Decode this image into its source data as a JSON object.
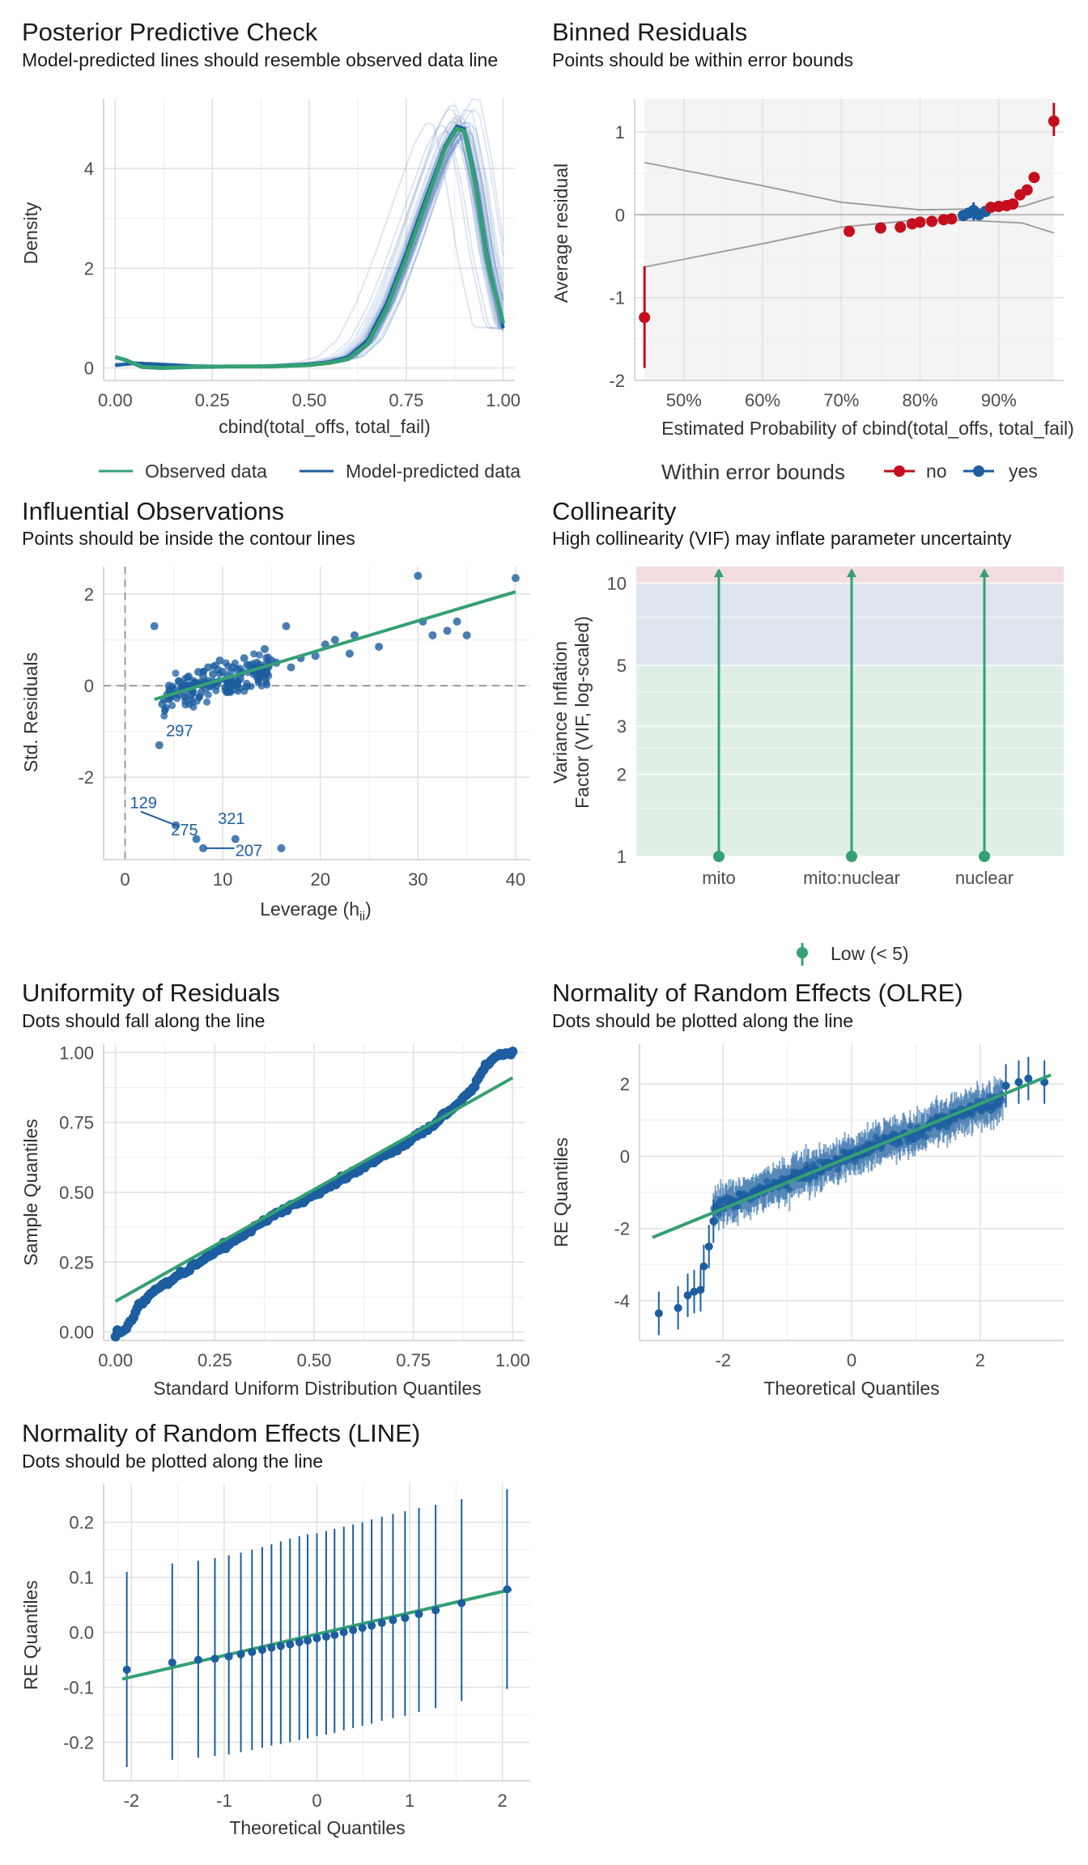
{
  "colors": {
    "green": "#34a074",
    "blue": "#1c5ea0",
    "red": "#c50f1e",
    "grey": "#a0a0a0",
    "panel": "#f4f4f4"
  },
  "chart_data": [
    {
      "id": "ppc",
      "type": "line",
      "title": "Posterior Predictive Check",
      "subtitle": "Model-predicted lines should resemble observed data line",
      "xlabel": "cbind(total_offs, total_fail)",
      "ylabel": "Density",
      "xlim": [
        -0.03,
        1.03
      ],
      "ylim": [
        -0.25,
        5.4
      ],
      "xticks": [
        0,
        0.25,
        0.5,
        0.75,
        1
      ],
      "xtick_labels": [
        "0.00",
        "0.25",
        "0.50",
        "0.75",
        "1.00"
      ],
      "yticks": [
        0,
        2,
        4
      ],
      "ytick_labels": [
        "0",
        "2",
        "4"
      ],
      "legend": [
        "Observed data",
        "Model-predicted data"
      ],
      "series": [
        {
          "name": "Model-predicted data",
          "x": [
            0,
            0.05,
            0.1,
            0.2,
            0.3,
            0.4,
            0.5,
            0.55,
            0.6,
            0.65,
            0.7,
            0.75,
            0.8,
            0.85,
            0.88,
            0.9,
            0.93,
            0.96,
            1.0
          ],
          "y": [
            0.05,
            0.1,
            0.08,
            0.04,
            0.03,
            0.04,
            0.08,
            0.12,
            0.22,
            0.55,
            1.3,
            2.3,
            3.4,
            4.45,
            4.85,
            4.8,
            3.7,
            2.2,
            0.8
          ]
        },
        {
          "name": "Observed data",
          "x": [
            0,
            0.03,
            0.07,
            0.12,
            0.2,
            0.3,
            0.4,
            0.5,
            0.55,
            0.6,
            0.65,
            0.7,
            0.75,
            0.8,
            0.85,
            0.88,
            0.9,
            0.93,
            0.96,
            1.0
          ],
          "y": [
            0.22,
            0.15,
            0.02,
            0.0,
            0.02,
            0.03,
            0.03,
            0.06,
            0.1,
            0.18,
            0.48,
            1.2,
            2.2,
            3.3,
            4.4,
            4.8,
            4.75,
            3.6,
            2.1,
            0.9
          ]
        }
      ]
    },
    {
      "id": "binned",
      "type": "scatter",
      "title": "Binned Residuals",
      "subtitle": "Points should be within error bounds",
      "xlabel": "Estimated Probability of cbind(total_offs, total_fail)",
      "ylabel": "Average residual",
      "xlim": [
        0.4375,
        0.9825
      ],
      "ylim": [
        -2.0,
        1.4
      ],
      "xticks": [
        0.5,
        0.6,
        0.7,
        0.8,
        0.9
      ],
      "xtick_labels": [
        "50%",
        "60%",
        "70%",
        "80%",
        "90%"
      ],
      "yticks": [
        -2,
        -1,
        0,
        1
      ],
      "ytick_labels": [
        "-2",
        "-1",
        "0",
        "1"
      ],
      "legend_title": "Within error bounds",
      "legend": [
        "no",
        "yes"
      ],
      "upper_bound": {
        "x": [
          0.45,
          0.6,
          0.7,
          0.8,
          0.87,
          0.93,
          0.97
        ],
        "y": [
          0.63,
          0.35,
          0.15,
          0.06,
          0.07,
          0.1,
          0.22
        ]
      },
      "lower_bound": {
        "x": [
          0.45,
          0.6,
          0.7,
          0.8,
          0.87,
          0.93,
          0.97
        ],
        "y": [
          -0.63,
          -0.35,
          -0.15,
          -0.06,
          -0.07,
          -0.1,
          -0.22
        ]
      },
      "points": [
        {
          "x": 0.45,
          "y": -1.24,
          "lo": -1.85,
          "hi": -0.62,
          "ok": "no"
        },
        {
          "x": 0.71,
          "y": -0.2,
          "ok": "no"
        },
        {
          "x": 0.75,
          "y": -0.16,
          "ok": "no"
        },
        {
          "x": 0.775,
          "y": -0.15,
          "ok": "no"
        },
        {
          "x": 0.79,
          "y": -0.11,
          "ok": "no"
        },
        {
          "x": 0.8,
          "y": -0.09,
          "ok": "no"
        },
        {
          "x": 0.815,
          "y": -0.08,
          "ok": "no"
        },
        {
          "x": 0.83,
          "y": -0.06,
          "ok": "no"
        },
        {
          "x": 0.84,
          "y": -0.05,
          "ok": "no"
        },
        {
          "x": 0.855,
          "y": -0.01,
          "ok": "yes"
        },
        {
          "x": 0.862,
          "y": 0.02,
          "ok": "yes"
        },
        {
          "x": 0.868,
          "y": 0.05,
          "lo": -0.07,
          "hi": 0.15,
          "ok": "yes"
        },
        {
          "x": 0.875,
          "y": 0.0,
          "ok": "yes"
        },
        {
          "x": 0.883,
          "y": 0.04,
          "ok": "yes"
        },
        {
          "x": 0.89,
          "y": 0.09,
          "ok": "no"
        },
        {
          "x": 0.9,
          "y": 0.1,
          "ok": "no"
        },
        {
          "x": 0.91,
          "y": 0.11,
          "ok": "no"
        },
        {
          "x": 0.918,
          "y": 0.13,
          "ok": "no"
        },
        {
          "x": 0.927,
          "y": 0.24,
          "ok": "no"
        },
        {
          "x": 0.936,
          "y": 0.3,
          "ok": "no"
        },
        {
          "x": 0.945,
          "y": 0.45,
          "ok": "no"
        },
        {
          "x": 0.97,
          "y": 1.13,
          "lo": 0.95,
          "hi": 1.35,
          "ok": "no"
        }
      ]
    },
    {
      "id": "influence",
      "type": "scatter",
      "title": "Influential Observations",
      "subtitle": "Points should be inside the contour lines",
      "xlabel": "Leverage (h",
      "xlabel_sub": "ii",
      "xlabel_tail": ")",
      "ylabel": "Std. Residuals",
      "xlim": [
        -2.2,
        41.5
      ],
      "ylim": [
        -3.8,
        2.6
      ],
      "xticks": [
        0,
        10,
        20,
        30,
        40
      ],
      "xtick_labels": [
        "0",
        "10",
        "20",
        "30",
        "40"
      ],
      "yticks": [
        -2,
        0,
        2
      ],
      "ytick_labels": [
        "-2",
        "0",
        "2"
      ],
      "fit": {
        "x": [
          3,
          40
        ],
        "y": [
          -0.3,
          2.05
        ]
      },
      "points": [
        [
          3,
          1.3
        ],
        [
          3.5,
          -1.3
        ],
        [
          5.2,
          -3.05
        ],
        [
          7.3,
          -3.35
        ],
        [
          8,
          -3.55
        ],
        [
          11.3,
          -3.35
        ],
        [
          16,
          -3.55
        ],
        [
          23,
          0.7
        ],
        [
          23.5,
          1.1
        ],
        [
          26,
          0.85
        ],
        [
          30,
          2.4
        ],
        [
          30.5,
          1.4
        ],
        [
          31.5,
          1.1
        ],
        [
          33,
          1.2
        ],
        [
          34,
          1.4
        ],
        [
          35,
          1.1
        ],
        [
          40,
          2.35
        ],
        [
          16.5,
          1.3
        ],
        [
          18,
          0.6
        ],
        [
          19.5,
          0.65
        ],
        [
          20.5,
          0.9
        ],
        [
          21.5,
          1.0
        ],
        [
          15.5,
          0.5
        ],
        [
          17,
          0.4
        ],
        [
          4,
          -0.3
        ],
        [
          4.5,
          0.0
        ],
        [
          5,
          -0.1
        ],
        [
          5.5,
          0.1
        ],
        [
          6,
          0.0
        ],
        [
          6.5,
          0.2
        ],
        [
          7,
          0.1
        ],
        [
          7.5,
          0.3
        ],
        [
          8,
          0.2
        ],
        [
          8.5,
          0.1
        ],
        [
          9,
          0.25
        ],
        [
          9.5,
          0.35
        ],
        [
          10,
          0.3
        ],
        [
          10.5,
          0.2
        ],
        [
          11,
          0.4
        ],
        [
          11.5,
          0.35
        ],
        [
          12,
          0.3
        ],
        [
          12.5,
          0.45
        ],
        [
          13,
          0.35
        ],
        [
          13.5,
          0.5
        ],
        [
          14,
          0.4
        ],
        [
          14.5,
          0.3
        ],
        [
          15,
          0.55
        ],
        [
          5.5,
          -0.2
        ],
        [
          6.5,
          -0.05
        ],
        [
          8.5,
          0.4
        ],
        [
          12.2,
          0.6
        ],
        [
          14.3,
          0.8
        ],
        [
          10.8,
          0.05
        ],
        [
          3.8,
          -0.4
        ],
        [
          7.8,
          -0.15
        ],
        [
          9.7,
          0.55
        ],
        [
          11.8,
          0.15
        ],
        [
          13.2,
          0.25
        ]
      ],
      "labels": [
        {
          "text": "297",
          "x": 4.2,
          "y": -0.98
        },
        {
          "text": "129",
          "x": 0.5,
          "y": -2.55
        },
        {
          "text": "275",
          "x": 4.7,
          "y": -3.15
        },
        {
          "text": "321",
          "x": 9.5,
          "y": -2.9
        },
        {
          "text": "207",
          "x": 11.3,
          "y": -3.6
        }
      ]
    },
    {
      "id": "vif",
      "type": "bar",
      "title": "Collinearity",
      "subtitle": "High collinearity (VIF) may inflate parameter uncertainty",
      "ylabel": "Variance Inflation",
      "ylabel2": "Factor (VIF, log-scaled)",
      "categories": [
        "mito",
        "mito:nuclear",
        "nuclear"
      ],
      "values": [
        1,
        1,
        1
      ],
      "yscale": "log",
      "ylim": [
        1,
        11.5
      ],
      "yticks": [
        1,
        2,
        3,
        5,
        10
      ],
      "ytick_labels": [
        "1",
        "2",
        "3",
        "5",
        "10"
      ],
      "legend": [
        "Low (< 5)"
      ]
    },
    {
      "id": "unif",
      "type": "scatter",
      "title": "Uniformity of Residuals",
      "subtitle": "Dots should fall along the line",
      "xlabel": "Standard Uniform Distribution Quantiles",
      "ylabel": "Sample Quantiles",
      "xlim": [
        -0.03,
        1.03
      ],
      "ylim": [
        -0.03,
        1.03
      ],
      "xticks": [
        0,
        0.25,
        0.5,
        0.75,
        1
      ],
      "xtick_labels": [
        "0.00",
        "0.25",
        "0.50",
        "0.75",
        "1.00"
      ],
      "yticks": [
        0,
        0.25,
        0.5,
        0.75,
        1
      ],
      "ytick_labels": [
        "0.00",
        "0.25",
        "0.50",
        "0.75",
        "1.00"
      ],
      "fit": {
        "x": [
          0,
          1
        ],
        "y": [
          0.11,
          0.91
        ]
      },
      "curve": {
        "x": [
          0,
          0.02,
          0.04,
          0.06,
          0.1,
          0.2,
          0.3,
          0.4,
          0.5,
          0.6,
          0.7,
          0.8,
          0.85,
          0.9,
          0.93,
          0.96,
          1.0
        ],
        "y": [
          0.0,
          0.005,
          0.04,
          0.1,
          0.15,
          0.24,
          0.33,
          0.42,
          0.49,
          0.57,
          0.65,
          0.74,
          0.8,
          0.87,
          0.95,
          0.99,
          1.0
        ]
      }
    },
    {
      "id": "olre",
      "type": "scatter",
      "title": "Normality of Random Effects (OLRE)",
      "subtitle": "Dots should be plotted along the line",
      "xlabel": "Theoretical Quantiles",
      "ylabel": "RE Quantiles",
      "xlim": [
        -3.3,
        3.3
      ],
      "ylim": [
        -5.1,
        3.1
      ],
      "xticks": [
        -2,
        0,
        2
      ],
      "xtick_labels": [
        "-2",
        "0",
        "2"
      ],
      "yticks": [
        -4,
        -2,
        0,
        2
      ],
      "ytick_labels": [
        "-4",
        "-2",
        "0",
        "2"
      ],
      "fit": {
        "x": [
          -3.1,
          3.1
        ],
        "y": [
          -2.25,
          2.25
        ]
      },
      "outliers": [
        [
          -3.0,
          -4.35
        ],
        [
          -2.7,
          -4.2
        ],
        [
          -2.55,
          -3.85
        ],
        [
          -2.45,
          -3.75
        ],
        [
          -2.35,
          -3.7
        ],
        [
          -2.3,
          -3.05
        ],
        [
          -2.22,
          -2.5
        ],
        [
          -2.15,
          -1.8
        ],
        [
          2.4,
          1.95
        ],
        [
          2.6,
          2.05
        ],
        [
          2.75,
          2.15
        ],
        [
          3.0,
          2.05
        ]
      ]
    },
    {
      "id": "line",
      "type": "scatter",
      "title": "Normality of Random Effects (LINE)",
      "subtitle": "Dots should be plotted along the line",
      "xlabel": "Theoretical Quantiles",
      "ylabel": "RE Quantiles",
      "xlim": [
        -2.3,
        2.3
      ],
      "ylim": [
        -0.27,
        0.27
      ],
      "xticks": [
        -2,
        -1,
        0,
        1,
        2
      ],
      "xtick_labels": [
        "-2",
        "-1",
        "0",
        "1",
        "2"
      ],
      "yticks": [
        -0.2,
        -0.1,
        0,
        0.1,
        0.2
      ],
      "ytick_labels": [
        "-0.2",
        "-0.1",
        "0.0",
        "0.1",
        "0.2"
      ],
      "fit": {
        "x": [
          -2.1,
          2.1
        ],
        "y": [
          -0.085,
          0.078
        ]
      },
      "points": [
        {
          "x": -2.05,
          "y": -0.068,
          "lo": -0.245,
          "hi": 0.11
        },
        {
          "x": -1.56,
          "y": -0.055,
          "lo": -0.232,
          "hi": 0.125
        },
        {
          "x": -1.28,
          "y": -0.05,
          "lo": -0.228,
          "hi": 0.13
        },
        {
          "x": -1.1,
          "y": -0.048,
          "lo": -0.225,
          "hi": 0.135
        },
        {
          "x": -0.95,
          "y": -0.044,
          "lo": -0.222,
          "hi": 0.14
        },
        {
          "x": -0.82,
          "y": -0.04,
          "lo": -0.218,
          "hi": 0.145
        },
        {
          "x": -0.7,
          "y": -0.036,
          "lo": -0.214,
          "hi": 0.15
        },
        {
          "x": -0.59,
          "y": -0.032,
          "lo": -0.21,
          "hi": 0.155
        },
        {
          "x": -0.49,
          "y": -0.028,
          "lo": -0.206,
          "hi": 0.16
        },
        {
          "x": -0.39,
          "y": -0.025,
          "lo": -0.203,
          "hi": 0.165
        },
        {
          "x": -0.29,
          "y": -0.022,
          "lo": -0.2,
          "hi": 0.17
        },
        {
          "x": -0.19,
          "y": -0.018,
          "lo": -0.196,
          "hi": 0.175
        },
        {
          "x": -0.1,
          "y": -0.015,
          "lo": -0.193,
          "hi": 0.178
        },
        {
          "x": 0.0,
          "y": -0.011,
          "lo": -0.189,
          "hi": 0.18
        },
        {
          "x": 0.1,
          "y": -0.008,
          "lo": -0.186,
          "hi": 0.184
        },
        {
          "x": 0.19,
          "y": -0.005,
          "lo": -0.183,
          "hi": 0.188
        },
        {
          "x": 0.29,
          "y": 0.0,
          "lo": -0.178,
          "hi": 0.192
        },
        {
          "x": 0.39,
          "y": 0.004,
          "lo": -0.174,
          "hi": 0.196
        },
        {
          "x": 0.49,
          "y": 0.008,
          "lo": -0.17,
          "hi": 0.2
        },
        {
          "x": 0.59,
          "y": 0.012,
          "lo": -0.166,
          "hi": 0.205
        },
        {
          "x": 0.7,
          "y": 0.017,
          "lo": -0.161,
          "hi": 0.21
        },
        {
          "x": 0.82,
          "y": 0.022,
          "lo": -0.156,
          "hi": 0.215
        },
        {
          "x": 0.95,
          "y": 0.026,
          "lo": -0.152,
          "hi": 0.22
        },
        {
          "x": 1.1,
          "y": 0.033,
          "lo": -0.145,
          "hi": 0.226
        },
        {
          "x": 1.28,
          "y": 0.04,
          "lo": -0.138,
          "hi": 0.232
        },
        {
          "x": 1.56,
          "y": 0.053,
          "lo": -0.125,
          "hi": 0.242
        },
        {
          "x": 2.05,
          "y": 0.078,
          "lo": -0.103,
          "hi": 0.26
        }
      ]
    }
  ]
}
